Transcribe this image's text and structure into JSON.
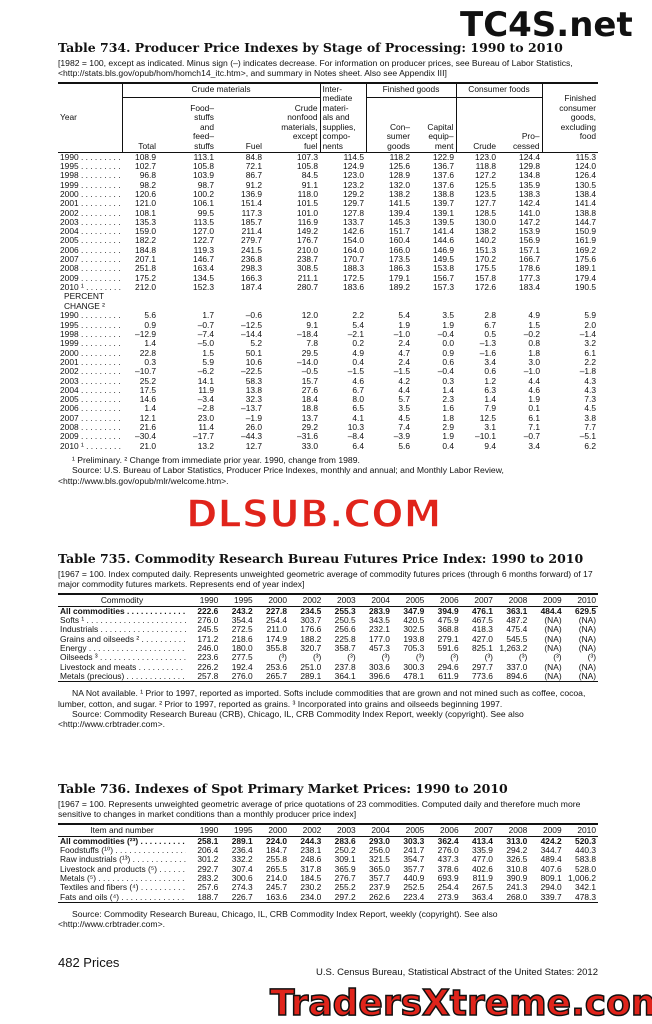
{
  "watermarks": [
    "TC4S.net",
    "DLSUB.COM",
    "TradersXtreme.com"
  ],
  "table_734": {
    "title": "Table 734. Producer Price Indexes by Stage of Processing: 1990 to 2010",
    "note": "[1982 = 100, except as indicated. Minus sign (–) indicates decrease. For information on producer prices, see Bureau of Labor Statistics, <http://stats.bls.gov/opub/hom/homch14_itc.htm>, and summary in Notes sheet. Also see Appendix III]",
    "header": {
      "year": "Year",
      "groups": [
        "Crude materials",
        "Inter-\nmediate\nmateri-\nals and\nsupplies,\ncompo-\nnents",
        "Finished goods",
        "Consumer foods",
        "Finished\nconsumer\ngoods,\nexcluding\nfood"
      ],
      "columns": [
        "Total",
        "Food–\nstuffs\nand\nfeed–\nstuffs",
        "Fuel",
        "Crude\nnonfood\nmaterials,\nexcept\nfuel",
        "Con–\nsumer\ngoods",
        "Capital\nequip–\nment",
        "Crude",
        "Pro–\ncessed"
      ]
    },
    "rows": [
      [
        "1990",
        "108.9",
        "113.1",
        "84.8",
        "107.3",
        "114.5",
        "118.2",
        "122.9",
        "123.0",
        "124.4",
        "115.3"
      ],
      [
        "1995",
        "102.7",
        "105.8",
        "72.1",
        "105.8",
        "124.9",
        "125.6",
        "136.7",
        "118.8",
        "129.8",
        "124.0"
      ],
      [
        "1998",
        "96.8",
        "103.9",
        "86.7",
        "84.5",
        "123.0",
        "128.9",
        "137.6",
        "127.2",
        "134.8",
        "126.4"
      ],
      [
        "1999",
        "98.2",
        "98.7",
        "91.2",
        "91.1",
        "123.2",
        "132.0",
        "137.6",
        "125.5",
        "135.9",
        "130.5"
      ],
      [
        "2000",
        "120.6",
        "100.2",
        "136.9",
        "118.0",
        "129.2",
        "138.2",
        "138.8",
        "123.5",
        "138.3",
        "138.4"
      ],
      [
        "2001",
        "121.0",
        "106.1",
        "151.4",
        "101.5",
        "129.7",
        "141.5",
        "139.7",
        "127.7",
        "142.4",
        "141.4"
      ],
      [
        "2002",
        "108.1",
        "99.5",
        "117.3",
        "101.0",
        "127.8",
        "139.4",
        "139.1",
        "128.5",
        "141.0",
        "138.8"
      ],
      [
        "2003",
        "135.3",
        "113.5",
        "185.7",
        "116.9",
        "133.7",
        "145.3",
        "139.5",
        "130.0",
        "147.2",
        "144.7"
      ],
      [
        "2004",
        "159.0",
        "127.0",
        "211.4",
        "149.2",
        "142.6",
        "151.7",
        "141.4",
        "138.2",
        "153.9",
        "150.9"
      ],
      [
        "2005",
        "182.2",
        "122.7",
        "279.7",
        "176.7",
        "154.0",
        "160.4",
        "144.6",
        "140.2",
        "156.9",
        "161.9"
      ],
      [
        "2006",
        "184.8",
        "119.3",
        "241.5",
        "210.0",
        "164.0",
        "166.0",
        "146.9",
        "151.3",
        "157.1",
        "169.2"
      ],
      [
        "2007",
        "207.1",
        "146.7",
        "236.8",
        "238.7",
        "170.7",
        "173.5",
        "149.5",
        "170.2",
        "166.7",
        "175.6"
      ],
      [
        "2008",
        "251.8",
        "163.4",
        "298.3",
        "308.5",
        "188.3",
        "186.3",
        "153.8",
        "175.5",
        "178.6",
        "189.1"
      ],
      [
        "2009",
        "175.2",
        "134.5",
        "166.3",
        "211.1",
        "172.5",
        "179.1",
        "156.7",
        "157.8",
        "177.3",
        "179.4"
      ],
      [
        "2010 ¹",
        "212.0",
        "152.3",
        "187.4",
        "280.7",
        "183.6",
        "189.2",
        "157.3",
        "172.6",
        "183.4",
        "190.5"
      ]
    ],
    "percent_change_label": "PERCENT\nCHANGE ²",
    "change_rows": [
      [
        "1990",
        "5.6",
        "1.7",
        "–0.6",
        "12.0",
        "2.2",
        "5.4",
        "3.5",
        "2.8",
        "4.9",
        "5.9"
      ],
      [
        "1995",
        "0.9",
        "–0.7",
        "–12.5",
        "9.1",
        "5.4",
        "1.9",
        "1.9",
        "6.7",
        "1.5",
        "2.0"
      ],
      [
        "1998",
        "–12.9",
        "–7.4",
        "–14.4",
        "–18.4",
        "–2.1",
        "–1.0",
        "–0.4",
        "0.5",
        "–0.2",
        "–1.4"
      ],
      [
        "1999",
        "1.4",
        "–5.0",
        "5.2",
        "7.8",
        "0.2",
        "2.4",
        "0.0",
        "–1.3",
        "0.8",
        "3.2"
      ],
      [
        "2000",
        "22.8",
        "1.5",
        "50.1",
        "29.5",
        "4.9",
        "4.7",
        "0.9",
        "–1.6",
        "1.8",
        "6.1"
      ],
      [
        "2001",
        "0.3",
        "5.9",
        "10.6",
        "–14.0",
        "0.4",
        "2.4",
        "0.6",
        "3.4",
        "3.0",
        "2.2"
      ],
      [
        "2002",
        "–10.7",
        "–6.2",
        "–22.5",
        "–0.5",
        "–1.5",
        "–1.5",
        "–0.4",
        "0.6",
        "–1.0",
        "–1.8"
      ],
      [
        "2003",
        "25.2",
        "14.1",
        "58.3",
        "15.7",
        "4.6",
        "4.2",
        "0.3",
        "1.2",
        "4.4",
        "4.3"
      ],
      [
        "2004",
        "17.5",
        "11.9",
        "13.8",
        "27.6",
        "6.7",
        "4.4",
        "1.4",
        "6.3",
        "4.6",
        "4.3"
      ],
      [
        "2005",
        "14.6",
        "–3.4",
        "32.3",
        "18.4",
        "8.0",
        "5.7",
        "2.3",
        "1.4",
        "1.9",
        "7.3"
      ],
      [
        "2006",
        "1.4",
        "–2.8",
        "–13.7",
        "18.8",
        "6.5",
        "3.5",
        "1.6",
        "7.9",
        "0.1",
        "4.5"
      ],
      [
        "2007",
        "12.1",
        "23.0",
        "–1.9",
        "13.7",
        "4.1",
        "4.5",
        "1.8",
        "12.5",
        "6.1",
        "3.8"
      ],
      [
        "2008",
        "21.6",
        "11.4",
        "26.0",
        "29.2",
        "10.3",
        "7.4",
        "2.9",
        "3.1",
        "7.1",
        "7.7"
      ],
      [
        "2009",
        "–30.4",
        "–17.7",
        "–44.3",
        "–31.6",
        "–8.4",
        "–3.9",
        "1.9",
        "–10.1",
        "–0.7",
        "–5.1"
      ],
      [
        "2010 ¹",
        "21.0",
        "13.2",
        "12.7",
        "33.0",
        "6.4",
        "5.6",
        "0.4",
        "9.4",
        "3.4",
        "6.2"
      ]
    ],
    "footnotes": [
      "¹ Preliminary. ² Change from immediate prior year. 1990, change from 1989.",
      "Source: U.S. Bureau of Labor Statistics, Producer Price Indexes, monthly and annual; and Monthly Labor Review, <http://www.bls.gov/opub/mlr/welcome.htm>."
    ]
  },
  "table_735": {
    "title": "Table 735. Commodity Research Bureau Futures Price Index: 1990 to 2010",
    "note": "[1967 = 100. Index computed daily. Represents unweighted geometric average of commodity futures prices (through 6 months forward) of 17 major commodity futures markets. Represents end of year index]",
    "header": [
      "Commodity",
      "1990",
      "1995",
      "2000",
      "2002",
      "2003",
      "2004",
      "2005",
      "2006",
      "2007",
      "2008",
      "2009",
      "2010"
    ],
    "rows": [
      [
        "All commodities",
        "222.6",
        "243.2",
        "227.8",
        "234.5",
        "255.3",
        "283.9",
        "347.9",
        "394.9",
        "476.1",
        "363.1",
        "484.4",
        "629.5"
      ],
      [
        "Softs ¹",
        "276.0",
        "354.4",
        "254.4",
        "303.7",
        "250.5",
        "343.5",
        "420.5",
        "475.9",
        "467.5",
        "487.2",
        "(NA)",
        "(NA)"
      ],
      [
        "Industrials",
        "245.5",
        "272.5",
        "211.0",
        "176.6",
        "256.6",
        "232.1",
        "302.5",
        "368.8",
        "418.3",
        "475.4",
        "(NA)",
        "(NA)"
      ],
      [
        "Grains and oilseeds ²",
        "171.2",
        "218.6",
        "174.9",
        "188.2",
        "225.8",
        "177.0",
        "193.8",
        "279.1",
        "427.0",
        "545.5",
        "(NA)",
        "(NA)"
      ],
      [
        "Energy",
        "246.0",
        "180.0",
        "355.8",
        "320.7",
        "358.7",
        "457.3",
        "705.3",
        "591.6",
        "825.1",
        "1,263.2",
        "(NA)",
        "(NA)"
      ],
      [
        "Oilseeds ³",
        "223.6",
        "277.5",
        "(³)",
        "(³)",
        "(³)",
        "(³)",
        "(³)",
        "(³)",
        "(³)",
        "(³)",
        "(³)",
        "(³)"
      ],
      [
        "Livestock and meats",
        "226.2",
        "192.4",
        "253.6",
        "251.0",
        "237.8",
        "303.6",
        "300.3",
        "294.6",
        "297.7",
        "337.0",
        "(NA)",
        "(NA)"
      ],
      [
        "Metals (precious)",
        "257.8",
        "276.0",
        "265.7",
        "289.1",
        "364.1",
        "396.6",
        "478.1",
        "611.9",
        "773.6",
        "894.6",
        "(NA)",
        "(NA)"
      ]
    ],
    "footnotes": [
      "NA Not available. ¹ Prior to 1997, reported as imported. Softs include commodities that are grown and not mined such as coffee, cocoa, lumber, cotton, and sugar. ² Prior to 1997, reported as grains. ³ Incorporated into grains and oilseeds beginning 1997.",
      "Source: Commodity Research Bureau (CRB), Chicago, IL, CRB Commodity Index Report, weekly (copyright). See also <http://www.crbtrader.com>."
    ]
  },
  "table_736": {
    "title": "Table 736. Indexes of Spot Primary Market Prices: 1990 to 2010",
    "note": "[1967 = 100. Represents unweighted geometric average of price quotations of 23 commodities. Computed daily and therefore much more sensitive to changes in market conditions than a monthly producer price index]",
    "header": [
      "Item and number",
      "1990",
      "1995",
      "2000",
      "2002",
      "2003",
      "2004",
      "2005",
      "2006",
      "2007",
      "2008",
      "2009",
      "2010"
    ],
    "rows": [
      [
        "All commodities (²³)",
        "258.1",
        "289.1",
        "224.0",
        "244.3",
        "283.6",
        "293.0",
        "303.3",
        "362.4",
        "413.4",
        "313.0",
        "424.2",
        "520.3"
      ],
      [
        "Foodstuffs (¹⁰)",
        "206.4",
        "236.4",
        "184.7",
        "238.1",
        "250.2",
        "256.0",
        "241.7",
        "276.0",
        "335.9",
        "294.2",
        "344.7",
        "440.3"
      ],
      [
        "Raw industrials (¹³)",
        "301.2",
        "332.2",
        "255.8",
        "248.6",
        "309.1",
        "321.5",
        "354.7",
        "437.3",
        "477.0",
        "326.5",
        "489.4",
        "583.8"
      ],
      [
        "Livestock and products (⁵)",
        "292.7",
        "307.4",
        "265.5",
        "317.8",
        "365.9",
        "365.0",
        "357.7",
        "378.6",
        "402.6",
        "310.8",
        "407.6",
        "528.0"
      ],
      [
        "Metals (⁵)",
        "283.2",
        "300.6",
        "214.0",
        "184.5",
        "276.7",
        "357.7",
        "440.9",
        "693.9",
        "811.9",
        "390.9",
        "809.1",
        "1,006.2"
      ],
      [
        "Textiles and fibers (⁴)",
        "257.6",
        "274.3",
        "245.7",
        "230.2",
        "255.2",
        "237.9",
        "252.5",
        "254.4",
        "267.5",
        "241.3",
        "294.0",
        "342.1"
      ],
      [
        "Fats and oils (⁴)",
        "188.7",
        "226.7",
        "163.6",
        "234.0",
        "297.2",
        "262.6",
        "223.4",
        "273.9",
        "363.4",
        "268.0",
        "339.7",
        "478.3"
      ]
    ],
    "footnotes": [
      "Source: Commodity Research Bureau, Chicago, IL, CRB Commodity Index Report, weekly (copyright). See also <http://www.crbtrader.com>."
    ]
  },
  "footer": {
    "page": "482  Prices",
    "publication": "U.S. Census Bureau, Statistical Abstract of the United States: 2012"
  }
}
